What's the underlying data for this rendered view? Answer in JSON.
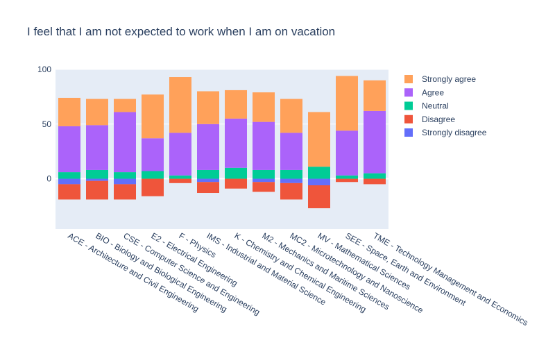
{
  "chart_data": {
    "type": "bar",
    "stacking": "relative",
    "title": "I feel that I am not expected to work when I am on vacation",
    "xlabel": "",
    "ylabel": "",
    "ylim": [
      -46,
      100
    ],
    "yticks": [
      0,
      50,
      100
    ],
    "grid": true,
    "legend_position": "right",
    "categories": [
      "ACE - Architecture and Civil Engineering",
      "BIO - Biology and Biological Engineering",
      "CSE - Computer Science and Engineering",
      "E2 - Electrical Engineering",
      "F - Physics",
      "IMS - Industrial and Material Science",
      "K - Chemistry and Chemical Engineering",
      "M2 - Mechanics and Maritime Sciences",
      "MC2 - Microtechnology and Nanoscience",
      "MV - Mathematical Sciences",
      "SEE - Space, Earth and Environment",
      "TME - Technology Management and Economics"
    ],
    "series": [
      {
        "name": "Strongly disagree",
        "color": "#636efa",
        "values": [
          -5,
          -2,
          -5,
          0,
          0,
          -3,
          0,
          -3,
          -4,
          -6,
          0,
          0
        ]
      },
      {
        "name": "Disagree",
        "color": "#ef553b",
        "values": [
          -14,
          -17,
          -14,
          -16,
          -4,
          -10,
          -9,
          -9,
          -15,
          -21,
          -3,
          -5
        ]
      },
      {
        "name": "Neutral",
        "color": "#00cc96",
        "values": [
          6,
          8,
          6,
          7,
          3,
          8,
          10,
          8,
          8,
          11,
          3,
          5
        ]
      },
      {
        "name": "Agree",
        "color": "#ab63fa",
        "values": [
          42,
          41,
          55,
          30,
          39,
          42,
          45,
          44,
          34,
          0,
          41,
          57
        ]
      },
      {
        "name": "Strongly agree",
        "color": "#ffa15a",
        "values": [
          26,
          24,
          12,
          40,
          51,
          30,
          26,
          27,
          31,
          50,
          50,
          28
        ]
      }
    ],
    "legend_order": [
      "Strongly agree",
      "Agree",
      "Neutral",
      "Disagree",
      "Strongly disagree"
    ]
  }
}
